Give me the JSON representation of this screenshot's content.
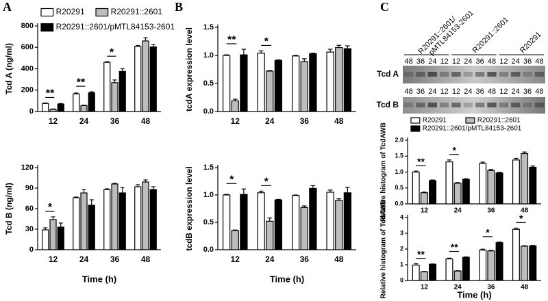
{
  "panels": [
    "A",
    "B",
    "C"
  ],
  "blot": {
    "groups": [
      "R20291::2601/\npMTL84153-2601",
      "R20291::2601",
      "R20291"
    ],
    "rows": [
      {
        "label": "Tcd A",
        "lanes": [
          "48",
          "36",
          "24",
          "12",
          "12",
          "24",
          "36",
          "48",
          "12",
          "24",
          "36",
          "48"
        ]
      },
      {
        "label": "Tcd B",
        "lanes": [
          "48",
          "36",
          "24",
          "12",
          "12",
          "24",
          "36",
          "48",
          "12",
          "24",
          "36",
          "48"
        ]
      }
    ]
  },
  "chart_data": [
    {
      "type": "bar",
      "y_label": "Tcd A (ng/ml)",
      "categories": [
        "12",
        "24",
        "36",
        "48"
      ],
      "ylim": [
        0,
        800
      ],
      "yticks": [
        0,
        200,
        400,
        600,
        800
      ],
      "legend": true,
      "series": [
        {
          "name": "R20291",
          "color": "#ffffff",
          "values": [
            75,
            165,
            460,
            610
          ],
          "errors": [
            5,
            8,
            6,
            8
          ]
        },
        {
          "name": "R20291::2601",
          "color": "#bdbdbd",
          "values": [
            20,
            55,
            270,
            660
          ],
          "errors": [
            4,
            5,
            25,
            30
          ]
        },
        {
          "name": "R20291::2601/pMTL84153-2601",
          "color": "#000000",
          "values": [
            70,
            175,
            375,
            605
          ],
          "errors": [
            5,
            10,
            25,
            20
          ]
        }
      ],
      "annotations": [
        {
          "label": "**",
          "x": "12"
        },
        {
          "label": "**",
          "x": "24"
        },
        {
          "label": "*",
          "x": "36"
        }
      ]
    },
    {
      "type": "bar",
      "y_label": "Tcd B (ng/ml)",
      "x_label": "Time (h)",
      "categories": [
        "12",
        "24",
        "36",
        "48"
      ],
      "ylim": [
        0,
        120
      ],
      "yticks": [
        0,
        30,
        60,
        90,
        120
      ],
      "legend": false,
      "series": [
        {
          "name": "R20291",
          "color": "#ffffff",
          "values": [
            29,
            76,
            88,
            92
          ],
          "errors": [
            3,
            1,
            1,
            3
          ]
        },
        {
          "name": "R20291::2601",
          "color": "#bdbdbd",
          "values": [
            44,
            83,
            96,
            99
          ],
          "errors": [
            4,
            5,
            1,
            3
          ]
        },
        {
          "name": "R20291::2601/pMTL84153-2601",
          "color": "#000000",
          "values": [
            33,
            65,
            83,
            88
          ],
          "errors": [
            6,
            8,
            8,
            4
          ]
        }
      ],
      "annotations": [
        {
          "label": "*",
          "x": "12"
        }
      ]
    },
    {
      "type": "bar",
      "y_label": "tcdA expression level",
      "categories": [
        "12",
        "24",
        "36",
        "48"
      ],
      "ylim": [
        0,
        1.5
      ],
      "yticks": [
        {
          "value": 0,
          "label": "0.0"
        },
        0.5,
        {
          "value": 1,
          "label": "1.0"
        },
        1.5
      ],
      "legend": false,
      "series": [
        {
          "name": "R20291",
          "color": "#ffffff",
          "values": [
            1.0,
            1.04,
            0.99,
            1.06
          ],
          "errors": [
            0.01,
            0.04,
            0.01,
            0.05
          ]
        },
        {
          "name": "R20291::2601",
          "color": "#bdbdbd",
          "values": [
            0.19,
            0.72,
            0.89,
            1.14
          ],
          "errors": [
            0.03,
            0.01,
            0.05,
            0.04
          ]
        },
        {
          "name": "R20291::2601/pMTL84153-2601",
          "color": "#000000",
          "values": [
            1.01,
            0.91,
            1.03,
            1.12
          ],
          "errors": [
            0.1,
            0.01,
            0.01,
            0.05
          ]
        }
      ],
      "annotations": [
        {
          "label": "**",
          "x": "12"
        },
        {
          "label": "*",
          "x": "24"
        }
      ]
    },
    {
      "type": "bar",
      "y_label": "tcdB expression level",
      "x_label": "Time (h)",
      "categories": [
        "12",
        "24",
        "36",
        "48"
      ],
      "ylim": [
        0,
        1.5
      ],
      "yticks": [
        {
          "value": 0,
          "label": "0.0"
        },
        0.5,
        {
          "value": 1,
          "label": "1.0"
        },
        1.5
      ],
      "legend": false,
      "series": [
        {
          "name": "R20291",
          "color": "#ffffff",
          "values": [
            1.0,
            1.04,
            0.99,
            1.05
          ],
          "errors": [
            0.01,
            0.03,
            0.01,
            0.04
          ]
        },
        {
          "name": "R20291::2601",
          "color": "#bdbdbd",
          "values": [
            0.35,
            0.52,
            0.77,
            0.9
          ],
          "errors": [
            0.01,
            0.06,
            0.03,
            0.03
          ]
        },
        {
          "name": "R20291::2601/pMTL84153-2601",
          "color": "#000000",
          "values": [
            1.01,
            0.91,
            1.12,
            1.04
          ],
          "errors": [
            0.1,
            0.01,
            0.05,
            0.1
          ]
        }
      ],
      "annotations": [
        {
          "label": "*",
          "x": "12"
        },
        {
          "label": "*",
          "x": "24"
        }
      ]
    },
    {
      "type": "bar",
      "y_label": "Relative histogram of TcdAWB",
      "categories": [
        "12",
        "24",
        "36",
        "48"
      ],
      "ylim": [
        0,
        2
      ],
      "yticks": [
        {
          "value": 0,
          "label": "0.0"
        },
        0.5,
        {
          "value": 1,
          "label": "1.0"
        },
        1.5,
        {
          "value": 2,
          "label": "2.0"
        }
      ],
      "legend": true,
      "series": [
        {
          "name": "R20291",
          "color": "#ffffff",
          "values": [
            1.0,
            1.32,
            1.27,
            1.38
          ],
          "errors": [
            0.03,
            0.06,
            0.04,
            0.05
          ]
        },
        {
          "name": "R20291::2601",
          "color": "#bdbdbd",
          "values": [
            0.35,
            0.65,
            1.05,
            1.58
          ],
          "errors": [
            0.02,
            0.02,
            0.03,
            0.05
          ]
        },
        {
          "name": "R20291::2601/pMTL84153-2601",
          "color": "#000000",
          "values": [
            0.73,
            0.77,
            0.97,
            1.15
          ],
          "errors": [
            0.02,
            0.02,
            0.02,
            0.04
          ]
        }
      ],
      "annotations": [
        {
          "label": "**",
          "x": "12"
        },
        {
          "label": "*",
          "x": "24"
        }
      ]
    },
    {
      "type": "bar",
      "y_label": "Relative histogram of TcdAWB",
      "x_label": "Time (h)",
      "categories": [
        "12",
        "24",
        "36",
        "48"
      ],
      "ylim": [
        0,
        4
      ],
      "yticks": [
        0,
        1,
        2,
        3,
        4
      ],
      "legend": false,
      "series": [
        {
          "name": "R20291",
          "color": "#ffffff",
          "values": [
            0.98,
            1.37,
            1.93,
            3.25
          ],
          "errors": [
            0.08,
            0.05,
            0.06,
            0.08
          ]
        },
        {
          "name": "R20291::2601",
          "color": "#bdbdbd",
          "values": [
            0.55,
            0.6,
            1.88,
            2.18
          ],
          "errors": [
            0.02,
            0.02,
            0.03,
            0.03
          ]
        },
        {
          "name": "R20291::2601/pMTL84153-2601",
          "color": "#000000",
          "values": [
            1.03,
            1.47,
            2.4,
            2.2
          ],
          "errors": [
            0.02,
            0.03,
            0.04,
            0.03
          ]
        }
      ],
      "annotations": [
        {
          "label": "**",
          "x": "12"
        },
        {
          "label": "**",
          "x": "24"
        },
        {
          "label": "*",
          "x": "36"
        },
        {
          "label": "*",
          "x": "48"
        }
      ]
    }
  ]
}
